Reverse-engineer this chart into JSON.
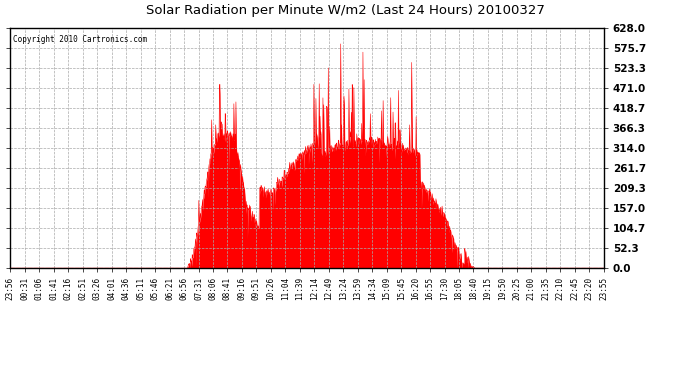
{
  "title": "Solar Radiation per Minute W/m2 (Last 24 Hours) 20100327",
  "copyright": "Copyright 2010 Cartronics.com",
  "yticks": [
    0.0,
    52.3,
    104.7,
    157.0,
    209.3,
    261.7,
    314.0,
    366.3,
    418.7,
    471.0,
    523.3,
    575.7,
    628.0
  ],
  "ymax": 628.0,
  "fill_color": "#FF0000",
  "line_color": "#FF0000",
  "bg_color": "#FFFFFF",
  "grid_color": "#AAAAAA",
  "dashed_line_color": "#FF0000",
  "x_labels": [
    "23:56",
    "00:31",
    "01:06",
    "01:41",
    "02:16",
    "02:51",
    "03:26",
    "04:01",
    "04:36",
    "05:11",
    "05:46",
    "06:21",
    "06:56",
    "07:31",
    "08:06",
    "08:41",
    "09:16",
    "09:51",
    "10:26",
    "11:04",
    "11:39",
    "12:14",
    "12:49",
    "13:24",
    "13:59",
    "14:34",
    "15:09",
    "15:45",
    "16:20",
    "16:55",
    "17:30",
    "18:05",
    "18:40",
    "19:15",
    "19:50",
    "20:25",
    "21:00",
    "21:35",
    "22:10",
    "22:45",
    "23:20",
    "23:55"
  ],
  "num_points": 1440
}
